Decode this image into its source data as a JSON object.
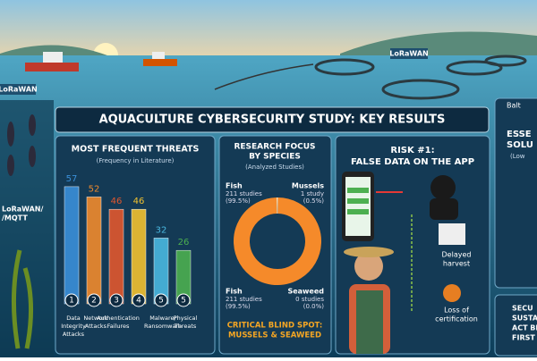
{
  "scene_labels": [
    "LoRaWAN",
    "LoRaWAN",
    "LoRaWAN/",
    "/MQTT"
  ],
  "title": "AQUACULTURE CYBERSECURITY STUDY: KEY RESULTS",
  "threats": {
    "heading": "MOST FREQUENT THREATS",
    "subheading": "(Frequency in Literature)",
    "bars": [
      {
        "rank": "1",
        "value": 57,
        "label": [
          "Data",
          "Integrity",
          "Attacks"
        ],
        "color": "#3a8fd8"
      },
      {
        "rank": "2",
        "value": 52,
        "label": [
          "Network",
          "Attacks"
        ],
        "color": "#f08a2c"
      },
      {
        "rank": "3",
        "value": 46,
        "label": [
          "Authentication",
          "Failures"
        ],
        "color": "#e0572e"
      },
      {
        "rank": "4",
        "value": 46,
        "label": [],
        "color": "#f2c230"
      },
      {
        "rank": "5",
        "value": 32,
        "label": [
          "Malware/",
          "Ransomware"
        ],
        "color": "#4ab8e0"
      },
      {
        "rank": "5",
        "value": 26,
        "label": [
          "Physical",
          "Threats"
        ],
        "color": "#4caf50"
      }
    ]
  },
  "species": {
    "heading": [
      "RESEARCH FOCUS",
      "BY SPECIES"
    ],
    "subheading": "(Analyzed Studies)",
    "segments": [
      {
        "name": "Fish",
        "detail": [
          "211 studies",
          "(99.5%)"
        ],
        "value": 99.5,
        "color": "#f58a2a"
      },
      {
        "name": "Mussels",
        "detail": [
          "1 study",
          "(0.5%)"
        ],
        "value": 0.5,
        "color": "#f4d9b0"
      }
    ],
    "bottom_labels": [
      {
        "name": "Fish",
        "detail": [
          "211 studies",
          "(99.5%)"
        ]
      },
      {
        "name": "Seaweed",
        "detail": [
          "0 studies",
          "(0.0%)"
        ]
      }
    ],
    "callout": [
      "CRITICAL BLIND SPOT:",
      "MUSSELS & SEAWEED"
    ]
  },
  "risk": {
    "heading": [
      "RISK #1:",
      "FALSE DATA ON THE APP"
    ],
    "outcomes": [
      [
        "Delayed",
        "harvest"
      ],
      [
        "Loss of",
        "certification"
      ]
    ]
  },
  "solutions": {
    "top": "Balt",
    "heading": [
      "ESSE",
      "SOLU"
    ],
    "sub": "(Low",
    "bottom": [
      "SECU",
      "SUSTAIN",
      "ACT BEF",
      "FIRST"
    ]
  }
}
